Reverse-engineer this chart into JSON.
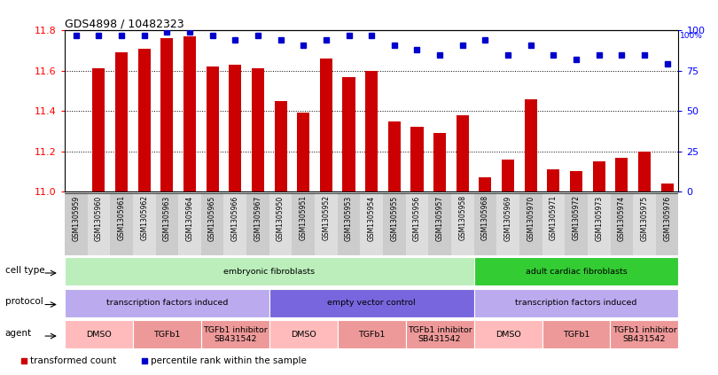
{
  "title": "GDS4898 / 10482323",
  "samples": [
    "GSM1305959",
    "GSM1305960",
    "GSM1305961",
    "GSM1305962",
    "GSM1305963",
    "GSM1305964",
    "GSM1305965",
    "GSM1305966",
    "GSM1305967",
    "GSM1305950",
    "GSM1305951",
    "GSM1305952",
    "GSM1305953",
    "GSM1305954",
    "GSM1305955",
    "GSM1305956",
    "GSM1305957",
    "GSM1305958",
    "GSM1305968",
    "GSM1305969",
    "GSM1305970",
    "GSM1305971",
    "GSM1305972",
    "GSM1305973",
    "GSM1305974",
    "GSM1305975",
    "GSM1305976"
  ],
  "bar_values": [
    11.0,
    11.61,
    11.69,
    11.71,
    11.76,
    11.77,
    11.62,
    11.63,
    11.61,
    11.45,
    11.39,
    11.66,
    11.57,
    11.6,
    11.35,
    11.32,
    11.29,
    11.38,
    11.07,
    11.16,
    11.46,
    11.11,
    11.1,
    11.15,
    11.17,
    11.2,
    11.04
  ],
  "percentile_values": [
    97,
    97,
    97,
    97,
    99,
    99,
    97,
    94,
    97,
    94,
    91,
    94,
    97,
    97,
    91,
    88,
    85,
    91,
    94,
    85,
    91,
    85,
    82,
    85,
    85,
    85,
    79
  ],
  "ylim_left": [
    11.0,
    11.8
  ],
  "ylim_right": [
    0,
    100
  ],
  "yticks_left": [
    11.0,
    11.2,
    11.4,
    11.6,
    11.8
  ],
  "yticks_right": [
    0,
    25,
    50,
    75,
    100
  ],
  "bar_color": "#cc0000",
  "dot_color": "#0000cc",
  "background_color": "#ffffff",
  "cell_type_row": {
    "label": "cell type",
    "groups": [
      {
        "text": "embryonic fibroblasts",
        "start": 0,
        "end": 18,
        "color": "#bbeebb"
      },
      {
        "text": "adult cardiac fibroblasts",
        "start": 18,
        "end": 27,
        "color": "#33cc33"
      }
    ]
  },
  "protocol_row": {
    "label": "protocol",
    "groups": [
      {
        "text": "transcription factors induced",
        "start": 0,
        "end": 9,
        "color": "#bbaaee"
      },
      {
        "text": "empty vector control",
        "start": 9,
        "end": 18,
        "color": "#7766dd"
      },
      {
        "text": "transcription factors induced",
        "start": 18,
        "end": 27,
        "color": "#bbaaee"
      }
    ]
  },
  "agent_row": {
    "label": "agent",
    "groups": [
      {
        "text": "DMSO",
        "start": 0,
        "end": 3,
        "color": "#ffbbbb"
      },
      {
        "text": "TGFb1",
        "start": 3,
        "end": 6,
        "color": "#ee9999"
      },
      {
        "text": "TGFb1 inhibitor\nSB431542",
        "start": 6,
        "end": 9,
        "color": "#ee9999"
      },
      {
        "text": "DMSO",
        "start": 9,
        "end": 12,
        "color": "#ffbbbb"
      },
      {
        "text": "TGFb1",
        "start": 12,
        "end": 15,
        "color": "#ee9999"
      },
      {
        "text": "TGFb1 inhibitor\nSB431542",
        "start": 15,
        "end": 18,
        "color": "#ee9999"
      },
      {
        "text": "DMSO",
        "start": 18,
        "end": 21,
        "color": "#ffbbbb"
      },
      {
        "text": "TGFb1",
        "start": 21,
        "end": 24,
        "color": "#ee9999"
      },
      {
        "text": "TGFb1 inhibitor\nSB431542",
        "start": 24,
        "end": 27,
        "color": "#ee9999"
      }
    ]
  },
  "legend_items": [
    {
      "color": "#cc0000",
      "label": "transformed count"
    },
    {
      "color": "#0000cc",
      "label": "percentile rank within the sample"
    }
  ],
  "grid_yticks": [
    11.2,
    11.4,
    11.6
  ],
  "xticklabel_area_color": "#dddddd"
}
